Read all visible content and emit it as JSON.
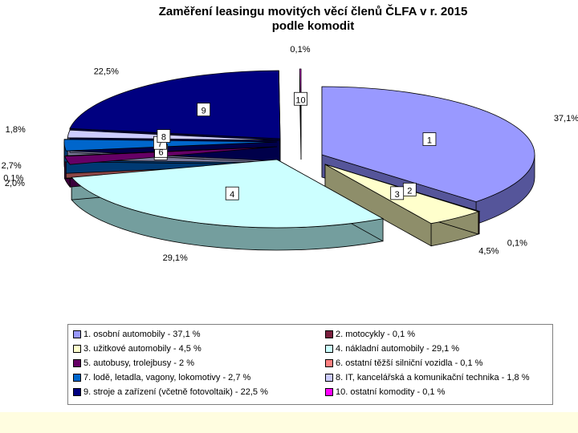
{
  "chart_data": {
    "type": "pie",
    "title_line1": "Zaměření leasingu movitých věcí členů ČLFA v r. 2015",
    "title_line2": "podle komodit",
    "slices": [
      {
        "id": "1",
        "label": "1. osobní automobily - 37,1 %",
        "value": 37.1,
        "value_label": "37,1%",
        "color": "#9999ff",
        "side": "#55559a"
      },
      {
        "id": "2",
        "label": "2. motocykly -  0,1 %",
        "value": 0.1,
        "value_label": "0,1%",
        "color": "#7a1f3d",
        "side": "#4a1225"
      },
      {
        "id": "3",
        "label": "3. užitkové automobily - 4,5 %",
        "value": 4.5,
        "value_label": "4,5%",
        "color": "#ffffcc",
        "side": "#8e8e6a"
      },
      {
        "id": "4",
        "label": "4. nákladní automobily - 29,1 %",
        "value": 29.1,
        "value_label": "29,1%",
        "color": "#ccffff",
        "side": "#749e9e"
      },
      {
        "id": "5",
        "label": "5. autobusy, trolejbusy - 2 %",
        "value": 2.0,
        "value_label": "2,0%",
        "color": "#660066",
        "side": "#3a003a"
      },
      {
        "id": "6",
        "label": "6. ostatní těžší silniční vozidla - 0,1 %",
        "value": 0.1,
        "value_label": "0,1%",
        "color": "#ff8080",
        "side": "#8c4646"
      },
      {
        "id": "7",
        "label": "7. lodě, letadla, vagony, lokomotivy - 2,7 %",
        "value": 2.7,
        "value_label": "2,7%",
        "color": "#0066cc",
        "side": "#003a74"
      },
      {
        "id": "8",
        "label": "8. IT, kancelářská a komunikační technika - 1,8 %",
        "value": 1.8,
        "value_label": "1,8%",
        "color": "#ccccff",
        "side": "#7a7a9c"
      },
      {
        "id": "9",
        "label": "9. stroje a zařízení (včetně fotovoltaik) - 22,5 %",
        "value": 22.5,
        "value_label": "22,5%",
        "color": "#000080",
        "side": "#00004a"
      },
      {
        "id": "10",
        "label": "10. ostatní komodity -  0,1 %",
        "value": 0.1,
        "value_label": "0,1%",
        "color": "#ff00ff",
        "side": "#8a008a"
      }
    ],
    "legend_position": "bottom",
    "style": "3d-exploded-pie"
  }
}
